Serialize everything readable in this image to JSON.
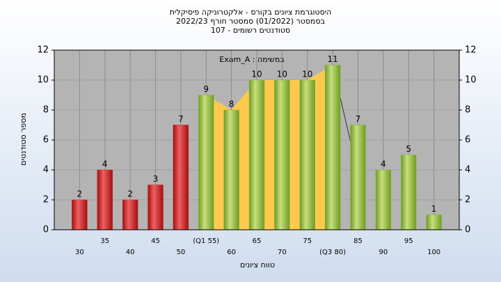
{
  "chart_data": {
    "type": "bar",
    "title": "היסטוגרמת ציונים בקורס - אלקטרוניקה פיסיקלית",
    "subtitle": "בסמסטר  (01/2022)  סמסטר חורף 2022/23",
    "subtitle2": "סטודנטים רשומים - 107",
    "annotation": "Exam_A : במשימה",
    "x_label": "טווח ציונים",
    "y_label": "מספר סטודנטים",
    "categories": [
      "30",
      "35",
      "40",
      "45",
      "50",
      "(Q1 55)",
      "60",
      "65",
      "70",
      "75",
      "(Q3 80)",
      "85",
      "90",
      "95",
      "100"
    ],
    "values": [
      2,
      4,
      2,
      3,
      7,
      9,
      8,
      10,
      10,
      10,
      11,
      7,
      4,
      5,
      1
    ],
    "colors": [
      "#d42a2a",
      "#d42a2a",
      "#d42a2a",
      "#d42a2a",
      "#d42a2a",
      "#8fb83a",
      "#8fb83a",
      "#8fb83a",
      "#8fb83a",
      "#8fb83a",
      "#8fb83a",
      "#8fb83a",
      "#8fb83a",
      "#8fb83a",
      "#8fb83a"
    ],
    "ylim": [
      0,
      12
    ],
    "yticks": [
      0,
      2,
      4,
      6,
      8,
      10,
      12
    ],
    "y2lim": [
      0,
      12
    ],
    "y2ticks": [
      0,
      2,
      4,
      6,
      8,
      10,
      12
    ],
    "grid": true
  }
}
